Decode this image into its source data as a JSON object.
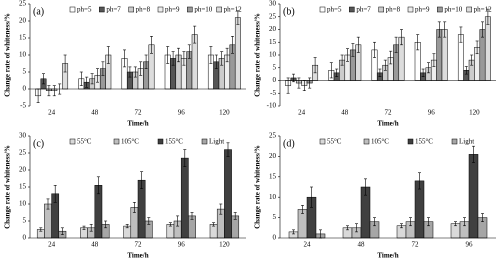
{
  "chart_data": [
    {
      "type": "bar",
      "label": "(a)",
      "x_label": "Time/h",
      "y_label": "Change rate of whiteness/%",
      "categories": [
        "24",
        "48",
        "72",
        "96",
        "120"
      ],
      "series": [
        {
          "name": "ph=5",
          "color": "#ffffff",
          "values": [
            -2,
            3,
            9,
            10,
            10
          ],
          "errors": [
            2,
            2,
            2.5,
            2.5,
            2.5
          ]
        },
        {
          "name": "ph=7",
          "color": "#555555",
          "values": [
            3,
            2,
            5,
            9,
            8
          ],
          "errors": [
            1.5,
            1.5,
            1.5,
            2,
            2
          ]
        },
        {
          "name": "ph=8",
          "color": "#cccccc",
          "values": [
            -0.5,
            3,
            5,
            10,
            9
          ],
          "errors": [
            1.5,
            1.5,
            1.5,
            2,
            2
          ]
        },
        {
          "name": "ph=9",
          "color": "#eeeeee",
          "values": [
            -0.5,
            4,
            6,
            9,
            10
          ],
          "errors": [
            1.5,
            2,
            2,
            2,
            2
          ]
        },
        {
          "name": "ph=10",
          "color": "#999999",
          "values": [
            0,
            6,
            8,
            11,
            13
          ],
          "errors": [
            1.5,
            2,
            2,
            2,
            2.5
          ]
        },
        {
          "name": "ph=12",
          "color": "#dddddd",
          "values": [
            7.5,
            10,
            13,
            16,
            21
          ],
          "errors": [
            2.5,
            2.5,
            2.5,
            2.5,
            2
          ]
        }
      ],
      "ylim": [
        -5,
        25
      ],
      "yticks": [
        -5,
        0,
        5,
        10,
        15,
        20,
        25
      ]
    },
    {
      "type": "bar",
      "label": "(b)",
      "x_label": "Time/h",
      "y_label": "Change rate of whiteness/%",
      "categories": [
        "24",
        "48",
        "72",
        "96",
        "120"
      ],
      "series": [
        {
          "name": "ph=5",
          "color": "#ffffff",
          "values": [
            -2,
            4,
            12,
            15,
            18
          ],
          "errors": [
            3,
            3,
            3,
            3,
            3
          ]
        },
        {
          "name": "ph=7",
          "color": "#555555",
          "values": [
            1,
            3,
            3,
            3,
            4
          ],
          "errors": [
            1.5,
            1.5,
            1.5,
            1.5,
            1.5
          ]
        },
        {
          "name": "ph=8",
          "color": "#cccccc",
          "values": [
            -1,
            8,
            6,
            5,
            8
          ],
          "errors": [
            2,
            2,
            2,
            2,
            2
          ]
        },
        {
          "name": "ph=9",
          "color": "#eeeeee",
          "values": [
            -2,
            10,
            9,
            8,
            13
          ],
          "errors": [
            2,
            2.5,
            2.5,
            2.5,
            2.5
          ]
        },
        {
          "name": "ph=10",
          "color": "#999999",
          "values": [
            -1,
            12,
            14,
            20,
            20
          ],
          "errors": [
            2,
            2.5,
            3,
            3,
            3
          ]
        },
        {
          "name": "ph=12",
          "color": "#dddddd",
          "values": [
            6,
            14,
            17,
            20,
            25
          ],
          "errors": [
            3,
            3,
            3,
            3,
            3
          ]
        }
      ],
      "ylim": [
        -10,
        30
      ],
      "yticks": [
        -10,
        -5,
        0,
        5,
        10,
        15,
        20,
        25,
        30
      ]
    },
    {
      "type": "bar",
      "label": "(c)",
      "x_label": "Time/h",
      "y_label": "Change rate of whiteness/%",
      "categories": [
        "24",
        "48",
        "72",
        "96",
        "120"
      ],
      "series": [
        {
          "name": "55°C",
          "color": "#d9d9d9",
          "values": [
            2.5,
            3,
            3.5,
            4,
            4
          ],
          "errors": [
            0.5,
            0.5,
            0.5,
            0.5,
            0.5
          ]
        },
        {
          "name": "105°C",
          "color": "#bfbfbf",
          "values": [
            10,
            3,
            9,
            5,
            8.5
          ],
          "errors": [
            1.5,
            1,
            1.5,
            1.5,
            1.5
          ]
        },
        {
          "name": "155°C",
          "color": "#404040",
          "values": [
            13,
            15.5,
            17,
            23.5,
            26
          ],
          "errors": [
            2.5,
            2.5,
            2.5,
            2.5,
            2
          ]
        },
        {
          "name": "Light",
          "color": "#a6a6a6",
          "values": [
            2,
            4,
            5,
            6.5,
            6.5
          ],
          "errors": [
            1,
            1,
            1,
            1,
            1
          ]
        }
      ],
      "ylim": [
        0,
        30
      ],
      "yticks": [
        0,
        5,
        10,
        15,
        20,
        25,
        30
      ]
    },
    {
      "type": "bar",
      "label": "(d)",
      "x_label": "Time/h",
      "y_label": "Change rate of whiteness/%",
      "categories": [
        "24",
        "48",
        "72",
        "96"
      ],
      "series": [
        {
          "name": "55°C",
          "color": "#d9d9d9",
          "values": [
            1.5,
            2.5,
            3,
            3.5
          ],
          "errors": [
            0.5,
            0.5,
            0.5,
            0.5
          ]
        },
        {
          "name": "105°C",
          "color": "#bfbfbf",
          "values": [
            7,
            2.5,
            4,
            4
          ],
          "errors": [
            1,
            1,
            1,
            1
          ]
        },
        {
          "name": "155°C",
          "color": "#404040",
          "values": [
            10,
            12.5,
            14,
            20.5
          ],
          "errors": [
            2.5,
            2,
            2,
            2
          ]
        },
        {
          "name": "Light",
          "color": "#a6a6a6",
          "values": [
            1,
            4,
            4,
            5
          ],
          "errors": [
            1,
            1,
            1,
            1
          ]
        }
      ],
      "ylim": [
        0,
        25
      ],
      "yticks": [
        0,
        5,
        10,
        15,
        20,
        25
      ]
    }
  ]
}
